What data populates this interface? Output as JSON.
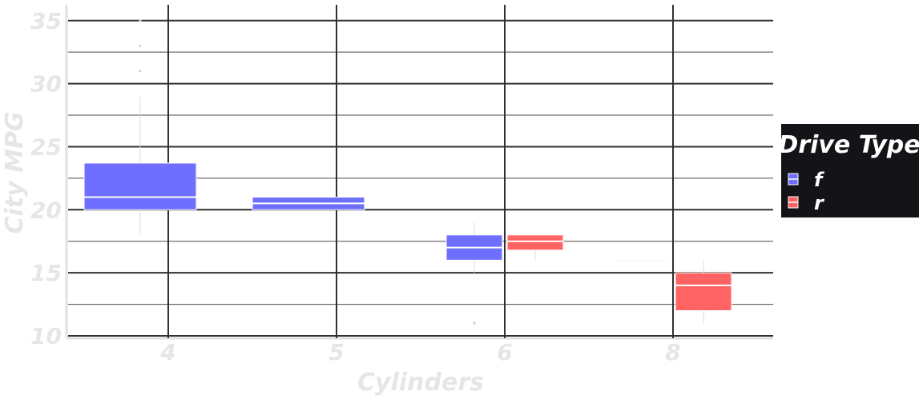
{
  "chart_data": {
    "type": "box",
    "xlabel": "Cylinders",
    "ylabel": "City MPG",
    "categories": [
      "4",
      "5",
      "6",
      "8"
    ],
    "ylim": [
      10,
      36
    ],
    "yticks": [
      10,
      15,
      20,
      25,
      30,
      35
    ],
    "grid": true,
    "legend": {
      "title": "Drive Type",
      "placement": "right",
      "items": [
        {
          "label": "f",
          "color": "#6f6fff"
        },
        {
          "label": "r",
          "color": "#ff6363"
        }
      ]
    },
    "series": [
      {
        "name": "f",
        "color": "#6f6fff",
        "boxes": [
          {
            "category": "4",
            "min": 18,
            "q1": 20,
            "median": 21,
            "q3": 23.7,
            "max": 29,
            "outliers": [
              31,
              33,
              35
            ]
          },
          {
            "category": "5",
            "min": 20,
            "q1": 20,
            "median": 20.5,
            "q3": 21,
            "max": 21,
            "outliers": []
          },
          {
            "category": "6",
            "min": 15,
            "q1": 16,
            "median": 17,
            "q3": 18,
            "max": 19,
            "outliers": [
              11
            ]
          },
          {
            "category": "8",
            "min": 16,
            "q1": 16,
            "median": 16,
            "q3": 16,
            "max": 16,
            "outliers": []
          }
        ]
      },
      {
        "name": "r",
        "color": "#ff6363",
        "boxes": [
          {
            "category": "6",
            "min": 16,
            "q1": 16.8,
            "median": 17.5,
            "q3": 18,
            "max": 18,
            "outliers": []
          },
          {
            "category": "8",
            "min": 11,
            "q1": 12,
            "median": 14,
            "q3": 15,
            "max": 16,
            "outliers": []
          }
        ]
      }
    ]
  }
}
